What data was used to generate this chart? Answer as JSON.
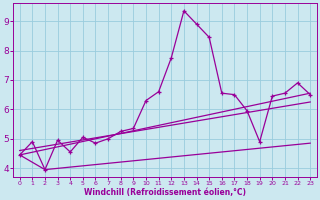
{
  "xlabel": "Windchill (Refroidissement éolien,°C)",
  "bg_color": "#cce8f0",
  "grid_color": "#99ccdd",
  "line_color": "#990099",
  "xlim": [
    -0.5,
    23.5
  ],
  "ylim": [
    3.7,
    9.6
  ],
  "xticks": [
    0,
    1,
    2,
    3,
    4,
    5,
    6,
    7,
    8,
    9,
    10,
    11,
    12,
    13,
    14,
    15,
    16,
    17,
    18,
    19,
    20,
    21,
    22,
    23
  ],
  "yticks": [
    4,
    5,
    6,
    7,
    8,
    9
  ],
  "main_x": [
    0,
    1,
    2,
    3,
    4,
    5,
    6,
    7,
    8,
    9,
    10,
    11,
    12,
    13,
    14,
    15,
    16,
    17,
    18,
    19,
    20,
    21,
    22,
    23
  ],
  "main_y": [
    4.45,
    4.9,
    3.95,
    4.95,
    4.55,
    5.05,
    4.85,
    5.0,
    5.25,
    5.35,
    6.3,
    6.6,
    7.75,
    9.35,
    8.9,
    8.45,
    6.55,
    6.5,
    5.95,
    4.9,
    6.45,
    6.55,
    6.9,
    6.5
  ],
  "trend1_x": [
    0,
    23
  ],
  "trend1_y": [
    4.45,
    6.55
  ],
  "trend2_x": [
    0,
    23
  ],
  "trend2_y": [
    4.6,
    6.25
  ],
  "trend3_x": [
    0,
    2,
    23
  ],
  "trend3_y": [
    4.45,
    3.95,
    4.85
  ]
}
